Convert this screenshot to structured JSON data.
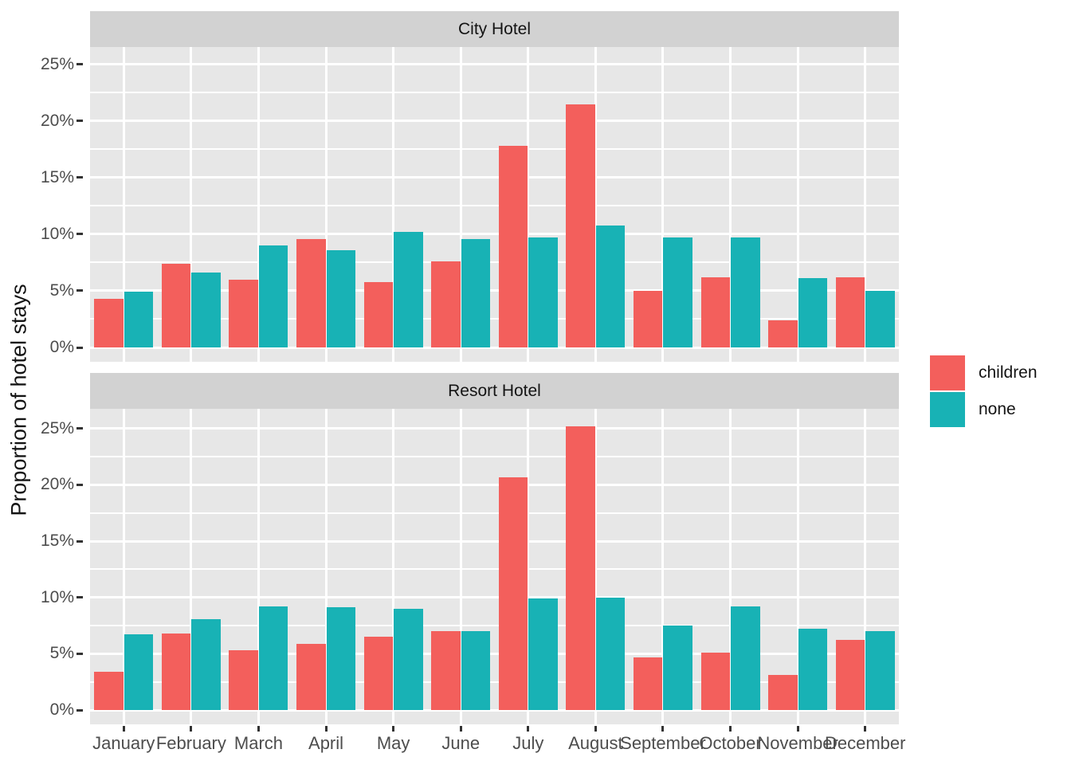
{
  "chart_data": {
    "type": "bar",
    "grouping": "dodged",
    "orientation": "vertical",
    "ylabel": "Proportion of hotel stays",
    "xlabel": "",
    "categories": [
      "January",
      "February",
      "March",
      "April",
      "May",
      "June",
      "July",
      "August",
      "September",
      "October",
      "November",
      "December"
    ],
    "y_ticks": [
      "0%",
      "5%",
      "10%",
      "15%",
      "20%",
      "25%"
    ],
    "y_tick_values": [
      0,
      5,
      10,
      15,
      20,
      25
    ],
    "minor_tick_values": [
      2.5,
      7.5,
      12.5,
      17.5,
      22.5
    ],
    "ylim": [
      0,
      26.5
    ],
    "unit": "percent",
    "grid": "white major and minor horizontal lines, white vertical lines at category centers, on gray panel",
    "legend": {
      "position": "right",
      "items": [
        {
          "label": "children",
          "color": "#F35F5C"
        },
        {
          "label": "none",
          "color": "#18B2B5"
        }
      ]
    },
    "facets": [
      {
        "title": "City Hotel",
        "series": [
          {
            "name": "children",
            "color": "#F35F5C",
            "values": [
              4.3,
              7.4,
              6.0,
              9.6,
              5.8,
              7.6,
              17.8,
              21.5,
              5.0,
              6.2,
              2.4,
              6.2
            ]
          },
          {
            "name": "none",
            "color": "#18B2B5",
            "values": [
              4.9,
              6.6,
              9.0,
              8.6,
              10.2,
              9.6,
              9.7,
              10.8,
              9.7,
              9.7,
              6.1,
              5.0
            ]
          }
        ]
      },
      {
        "title": "Resort Hotel",
        "series": [
          {
            "name": "children",
            "color": "#F35F5C",
            "values": [
              3.4,
              6.8,
              5.3,
              5.9,
              6.5,
              7.0,
              20.7,
              25.2,
              4.7,
              5.1,
              3.1,
              6.2
            ]
          },
          {
            "name": "none",
            "color": "#18B2B5",
            "values": [
              6.7,
              8.1,
              9.2,
              9.1,
              9.0,
              7.0,
              9.9,
              10.0,
              7.5,
              9.2,
              7.2,
              7.0
            ]
          }
        ]
      }
    ],
    "colors": {
      "panel_bg": "#E7E7E7",
      "strip_bg": "#D2D2D2",
      "gridline": "#FFFFFF",
      "axis_text": "#4D4D4D",
      "text": "#141414"
    }
  }
}
